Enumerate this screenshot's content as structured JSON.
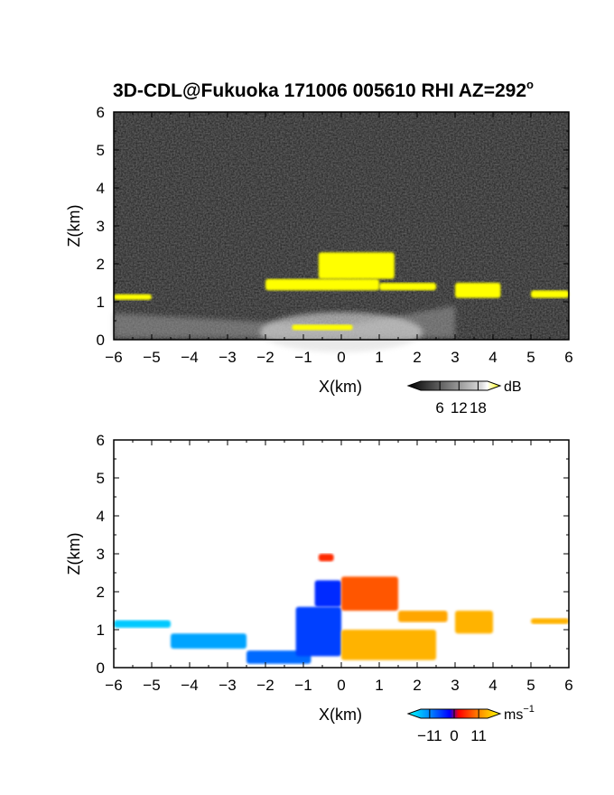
{
  "title": "3D-CDL@Fukuoka 171006 005610 RHI AZ=292",
  "title_superscript": "o",
  "chart_data": [
    {
      "type": "heatmap",
      "name": "intensity",
      "xlabel": "X(km)",
      "ylabel": "Z(km)",
      "xlim": [
        -6,
        6
      ],
      "ylim": [
        0,
        6
      ],
      "xticks": [
        "−6",
        "−5",
        "−4",
        "−3",
        "−2",
        "−1",
        "0",
        "1",
        "2",
        "3",
        "4",
        "5",
        "6"
      ],
      "yticks": [
        "0",
        "1",
        "2",
        "3",
        "4",
        "5",
        "6"
      ],
      "colorbar": {
        "unit": "dB",
        "ticks": [
          "6",
          "12",
          "18"
        ],
        "tick_values": [
          6,
          12,
          18
        ],
        "range": [
          0,
          21
        ],
        "colors": [
          "#000000",
          "#ffffff",
          "#ffff00"
        ]
      },
      "regions": [
        {
          "x": [
            -1.3,
            0.3
          ],
          "z": [
            0.25,
            0.4
          ],
          "level": "yellow"
        },
        {
          "x": [
            -2.0,
            1.0
          ],
          "z": [
            1.3,
            1.6
          ],
          "level": "yellow"
        },
        {
          "x": [
            -0.6,
            1.4
          ],
          "z": [
            1.6,
            2.3
          ],
          "level": "yellow"
        },
        {
          "x": [
            1.0,
            2.5
          ],
          "z": [
            1.3,
            1.5
          ],
          "level": "yellow"
        },
        {
          "x": [
            3.0,
            4.2
          ],
          "z": [
            1.1,
            1.5
          ],
          "level": "yellow"
        },
        {
          "x": [
            5.0,
            6.0
          ],
          "z": [
            1.1,
            1.3
          ],
          "level": "yellow"
        },
        {
          "x": [
            -6.0,
            -5.0
          ],
          "z": [
            1.05,
            1.2
          ],
          "level": "yellow"
        }
      ]
    },
    {
      "type": "heatmap",
      "name": "velocity",
      "xlabel": "X(km)",
      "ylabel": "Z(km)",
      "xlim": [
        -6,
        6
      ],
      "ylim": [
        0,
        6
      ],
      "xticks": [
        "−6",
        "−5",
        "−4",
        "−3",
        "−2",
        "−1",
        "0",
        "1",
        "2",
        "3",
        "4",
        "5",
        "6"
      ],
      "yticks": [
        "0",
        "1",
        "2",
        "3",
        "4",
        "5",
        "6"
      ],
      "colorbar": {
        "unit": "ms",
        "unit_superscript": "−1",
        "ticks": [
          "−11",
          "0",
          "11"
        ],
        "tick_values": [
          -11,
          0,
          11
        ],
        "range": [
          -15,
          15
        ],
        "colors": [
          "#00ffff",
          "#0000ff",
          "#ff0000",
          "#ffff00"
        ]
      },
      "regions": [
        {
          "x": [
            -6.0,
            -4.5
          ],
          "z": [
            1.05,
            1.25
          ],
          "v": -12
        },
        {
          "x": [
            -4.5,
            -2.5
          ],
          "z": [
            0.5,
            0.9
          ],
          "v": -10
        },
        {
          "x": [
            -2.5,
            -0.8
          ],
          "z": [
            0.1,
            0.45
          ],
          "v": -7
        },
        {
          "x": [
            -1.2,
            0.0
          ],
          "z": [
            0.3,
            1.6
          ],
          "v": -5
        },
        {
          "x": [
            -0.7,
            0.0
          ],
          "z": [
            1.6,
            2.3
          ],
          "v": -4
        },
        {
          "x": [
            0.0,
            1.5
          ],
          "z": [
            1.5,
            2.4
          ],
          "v": 4
        },
        {
          "x": [
            0.0,
            2.5
          ],
          "z": [
            0.2,
            1.0
          ],
          "v": 9
        },
        {
          "x": [
            1.5,
            2.8
          ],
          "z": [
            1.2,
            1.5
          ],
          "v": 8
        },
        {
          "x": [
            3.0,
            4.0
          ],
          "z": [
            0.9,
            1.5
          ],
          "v": 9
        },
        {
          "x": [
            5.0,
            6.0
          ],
          "z": [
            1.15,
            1.3
          ],
          "v": 9
        },
        {
          "x": [
            -0.6,
            -0.2
          ],
          "z": [
            2.8,
            3.0
          ],
          "v": 2
        }
      ]
    }
  ]
}
